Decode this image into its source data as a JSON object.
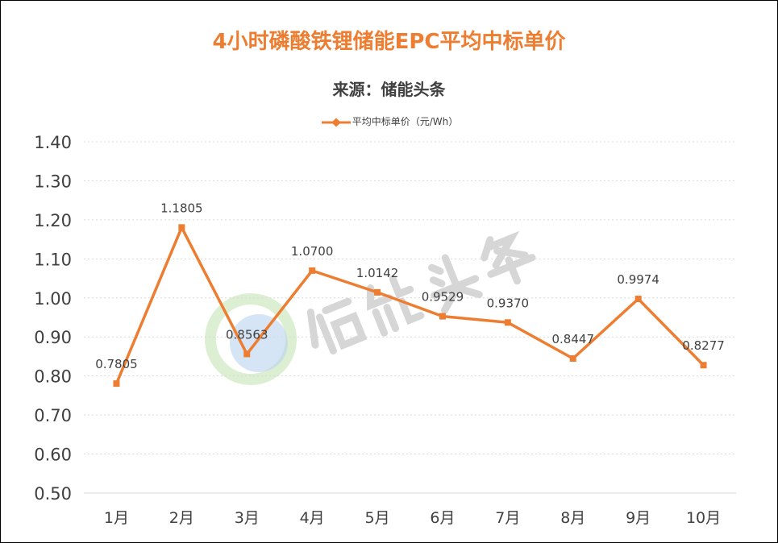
{
  "chart_data": {
    "type": "line",
    "title": "4小时磷酸铁锂储能EPC平均中标单价",
    "subtitle": "来源：储能头条",
    "categories": [
      "1月",
      "2月",
      "3月",
      "4月",
      "5月",
      "6月",
      "7月",
      "8月",
      "9月",
      "10月"
    ],
    "series": [
      {
        "name": "平均中标单价（元/Wh）",
        "values": [
          0.7805,
          1.1805,
          0.8563,
          1.07,
          1.0142,
          0.9529,
          0.937,
          0.8447,
          0.9974,
          0.8277
        ],
        "color": "#ED7D31"
      }
    ],
    "data_labels": [
      "0.7805",
      "1.1805",
      "0.8563",
      "1.0700",
      "1.0142",
      "0.9529",
      "0.9370",
      "0.8447",
      "0.9974",
      "0.8277"
    ],
    "yticks": [
      "0.50",
      "0.60",
      "0.70",
      "0.80",
      "0.90",
      "1.00",
      "1.10",
      "1.20",
      "1.30",
      "1.40"
    ],
    "ylim": [
      0.5,
      1.4
    ],
    "grid": true,
    "legend_position": "top",
    "watermark": "储能头条"
  }
}
